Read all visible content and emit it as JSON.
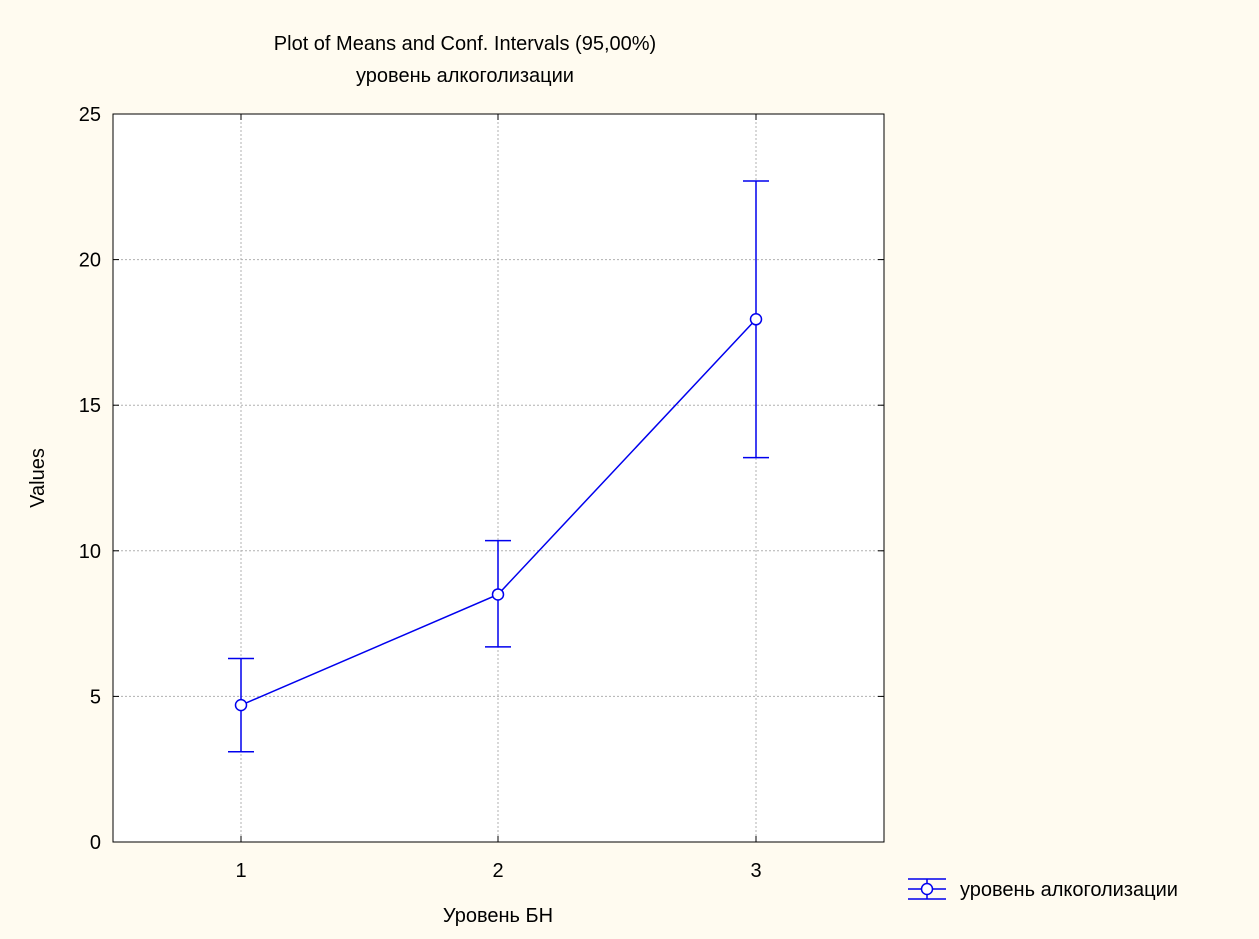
{
  "chart_data": {
    "type": "line",
    "title": "Plot of Means and Conf. Intervals (95,00%)",
    "subtitle": "уровень алкоголизации",
    "xlabel": "Уровень БН",
    "ylabel": "Values",
    "categories": [
      "1",
      "2",
      "3"
    ],
    "ylim": [
      0,
      25
    ],
    "yticks": [
      0,
      5,
      10,
      15,
      20,
      25
    ],
    "grid": true,
    "legend_position": "bottom-right",
    "series": [
      {
        "name": "уровень алкоголизации",
        "color": "#0000ee",
        "marker": "circle",
        "means": [
          4.7,
          8.5,
          17.95
        ],
        "ci_lower": [
          3.1,
          6.7,
          13.2
        ],
        "ci_upper": [
          6.3,
          10.35,
          22.7
        ]
      }
    ]
  },
  "colors": {
    "background": "#fffbf0",
    "plot_area": "#ffffff",
    "grid": "#b0b0b0",
    "series": "#0000ee"
  }
}
